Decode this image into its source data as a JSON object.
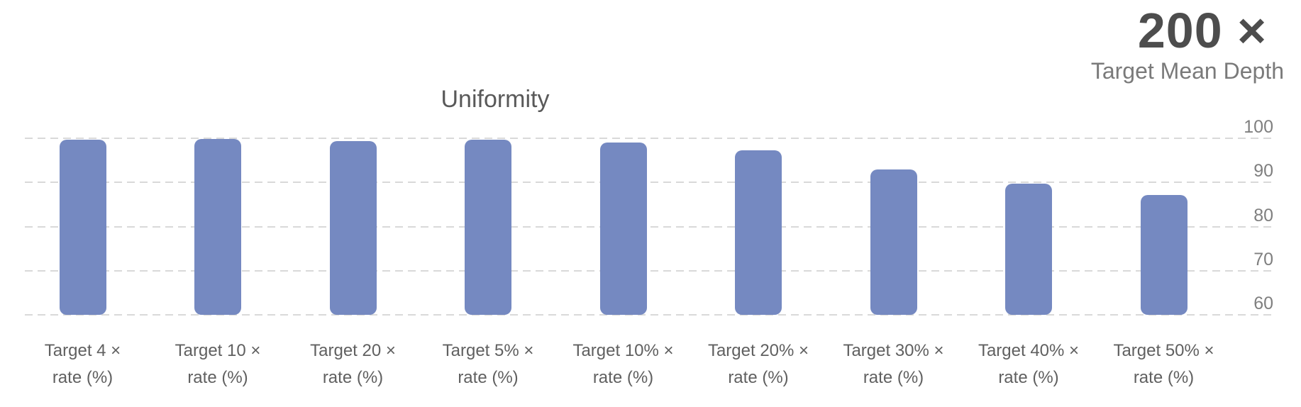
{
  "header": {
    "value": "200 ×",
    "label": "Target Mean Depth"
  },
  "chart_data": {
    "type": "bar",
    "title": "Uniformity",
    "categories": [
      {
        "l1": "Target 4 ×",
        "l2": "rate (%)"
      },
      {
        "l1": "Target 10 ×",
        "l2": "rate (%)"
      },
      {
        "l1": "Target 20 ×",
        "l2": "rate (%)"
      },
      {
        "l1": "Target 5% ×",
        "l2": "rate (%)"
      },
      {
        "l1": "Target 10% ×",
        "l2": "rate (%)"
      },
      {
        "l1": "Target 20% ×",
        "l2": "rate (%)"
      },
      {
        "l1": "Target 30% ×",
        "l2": "rate (%)"
      },
      {
        "l1": "Target 40% ×",
        "l2": "rate (%)"
      },
      {
        "l1": "Target 50% ×",
        "l2": "rate (%)"
      }
    ],
    "values": [
      99.7,
      99.8,
      99.4,
      99.7,
      99.1,
      97.3,
      93.0,
      89.8,
      87.2
    ],
    "yticks": [
      "100",
      "90",
      "80",
      "70",
      "60"
    ],
    "ylim": [
      60,
      100
    ],
    "xlabel": "",
    "ylabel": "",
    "grid": "horizontal-dashed",
    "legend": "none",
    "bar_color": "#7589c1",
    "colors": {
      "title": "#595959",
      "tick_label": "#7f7f7f",
      "category_label": "#606060",
      "callout_value": "#4d4d4d",
      "callout_label": "#7a7a7a",
      "gridline": "#d9d9d9"
    }
  }
}
